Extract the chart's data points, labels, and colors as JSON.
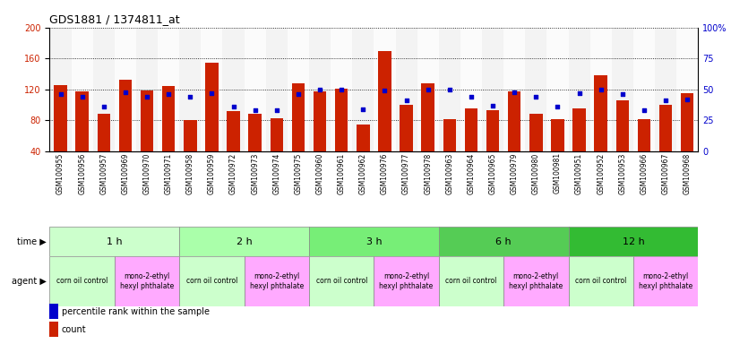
{
  "title": "GDS1881 / 1374811_at",
  "samples": [
    "GSM100955",
    "GSM100956",
    "GSM100957",
    "GSM100969",
    "GSM100970",
    "GSM100971",
    "GSM100958",
    "GSM100959",
    "GSM100972",
    "GSM100973",
    "GSM100974",
    "GSM100975",
    "GSM100960",
    "GSM100961",
    "GSM100962",
    "GSM100976",
    "GSM100977",
    "GSM100978",
    "GSM100963",
    "GSM100964",
    "GSM100965",
    "GSM100979",
    "GSM100980",
    "GSM100981",
    "GSM100951",
    "GSM100952",
    "GSM100953",
    "GSM100966",
    "GSM100967",
    "GSM100968"
  ],
  "counts": [
    126,
    118,
    88,
    132,
    119,
    124,
    80,
    154,
    92,
    88,
    83,
    128,
    118,
    121,
    75,
    170,
    100,
    128,
    82,
    95,
    93,
    117,
    88,
    82,
    95,
    138,
    106,
    82,
    100,
    115
  ],
  "percentiles": [
    46,
    44,
    36,
    48,
    44,
    46,
    44,
    47,
    36,
    33,
    33,
    46,
    50,
    50,
    34,
    49,
    41,
    50,
    50,
    44,
    37,
    48,
    44,
    36,
    47,
    50,
    46,
    33,
    41,
    42
  ],
  "time_groups": [
    {
      "label": "1 h",
      "start": 0,
      "end": 6
    },
    {
      "label": "2 h",
      "start": 6,
      "end": 12
    },
    {
      "label": "3 h",
      "start": 12,
      "end": 18
    },
    {
      "label": "6 h",
      "start": 18,
      "end": 24
    },
    {
      "label": "12 h",
      "start": 24,
      "end": 30
    }
  ],
  "agent_groups": [
    {
      "label": "corn oil control",
      "start": 0,
      "end": 3,
      "color": "#ccffcc"
    },
    {
      "label": "mono-2-ethyl\nhexyl phthalate",
      "start": 3,
      "end": 6,
      "color": "#ffaaff"
    },
    {
      "label": "corn oil control",
      "start": 6,
      "end": 9,
      "color": "#ccffcc"
    },
    {
      "label": "mono-2-ethyl\nhexyl phthalate",
      "start": 9,
      "end": 12,
      "color": "#ffaaff"
    },
    {
      "label": "corn oil control",
      "start": 12,
      "end": 15,
      "color": "#ccffcc"
    },
    {
      "label": "mono-2-ethyl\nhexyl phthalate",
      "start": 15,
      "end": 18,
      "color": "#ffaaff"
    },
    {
      "label": "corn oil control",
      "start": 18,
      "end": 21,
      "color": "#ccffcc"
    },
    {
      "label": "mono-2-ethyl\nhexyl phthalate",
      "start": 21,
      "end": 24,
      "color": "#ffaaff"
    },
    {
      "label": "corn oil control",
      "start": 24,
      "end": 27,
      "color": "#ccffcc"
    },
    {
      "label": "mono-2-ethyl\nhexyl phthalate",
      "start": 27,
      "end": 30,
      "color": "#ffaaff"
    }
  ],
  "time_colors": [
    "#ccffcc",
    "#aaddaa",
    "#88cc88",
    "#66bb66",
    "#44aa44"
  ],
  "ylim_left": [
    40,
    200
  ],
  "ylim_right": [
    0,
    100
  ],
  "yticks_left": [
    40,
    80,
    120,
    160,
    200
  ],
  "yticks_right": [
    0,
    25,
    50,
    75,
    100
  ],
  "bar_color": "#cc2200",
  "dot_color": "#0000cc",
  "title_fontsize": 9,
  "tick_fontsize": 5.5,
  "background_color": "#ffffff"
}
